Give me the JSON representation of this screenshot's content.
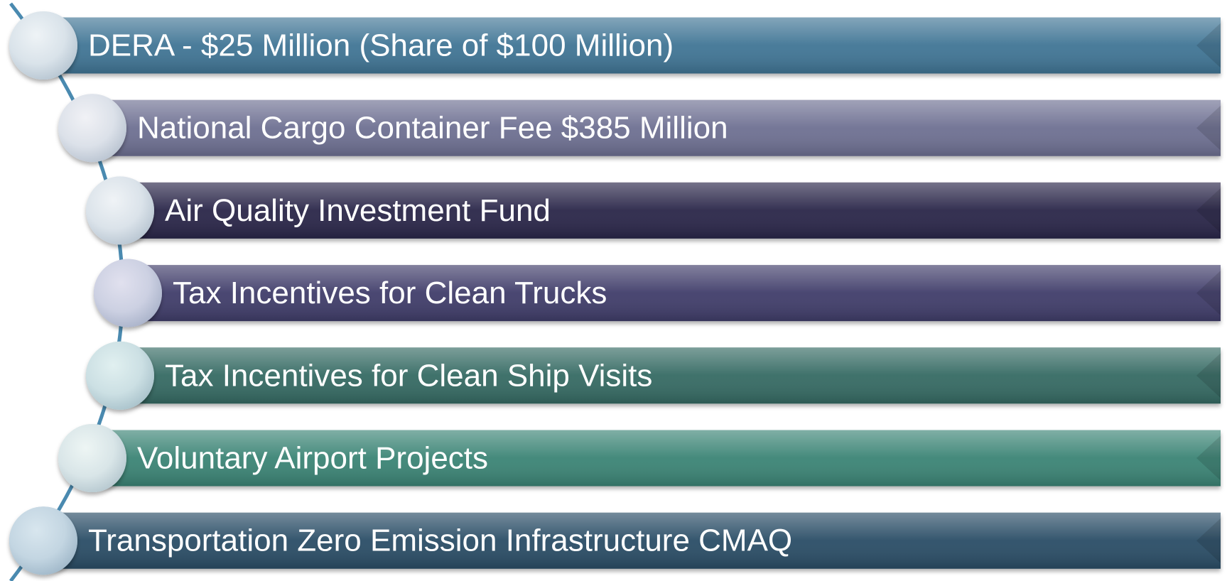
{
  "items": [
    {
      "label": "DERA - $25 Million (Share of $100 Million)"
    },
    {
      "label": "National Cargo Container Fee $385 Million"
    },
    {
      "label": "Air Quality Investment Fund"
    },
    {
      "label": "Tax Incentives for Clean Trucks"
    },
    {
      "label": "Tax Incentives for Clean Ship Visits"
    },
    {
      "label": "Voluntary Airport Projects"
    },
    {
      "label": "Transportation Zero Emission Infrastructure CMAQ"
    }
  ]
}
